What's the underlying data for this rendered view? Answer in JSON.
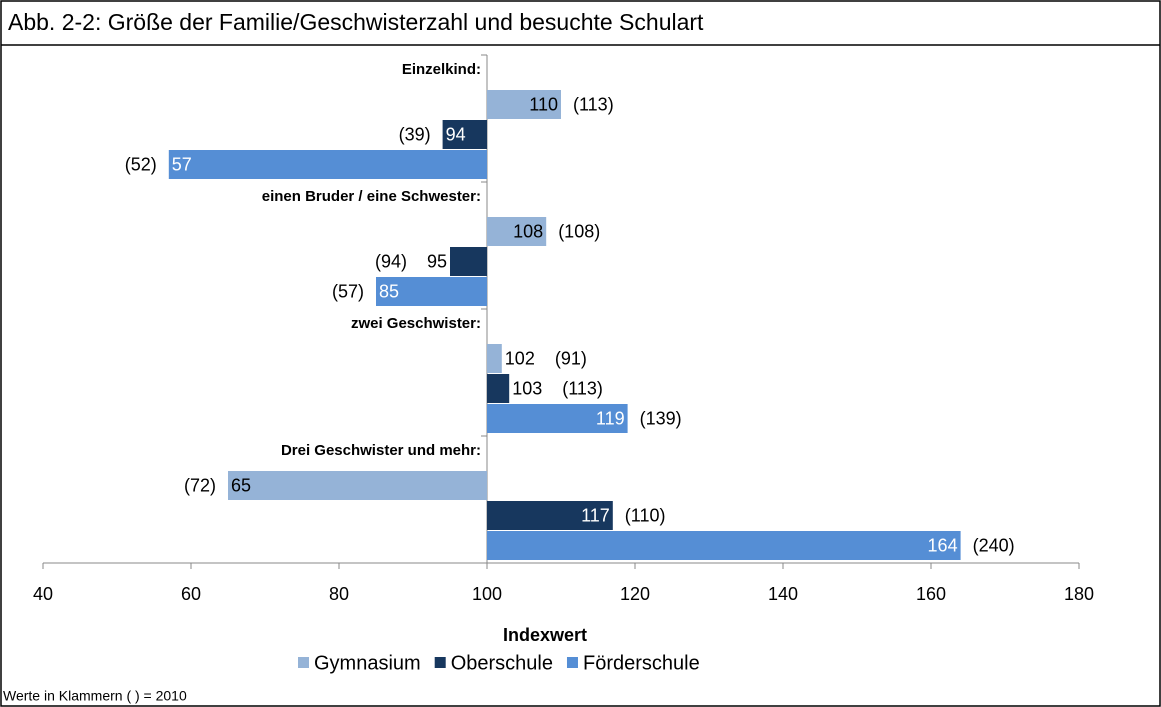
{
  "chart_data": {
    "type": "bar",
    "orientation": "horizontal",
    "title": "Abb. 2-2: Größe der Familie/Geschwisterzahl und besuchte Schulart",
    "categories": [
      "Einzelkind:",
      "einen Bruder / eine Schwester:",
      "zwei Geschwister:",
      "Drei Geschwister und mehr:"
    ],
    "series": [
      {
        "name": "Gymnasium",
        "color": "#95b3d7",
        "label_color": "#000000",
        "values": [
          110,
          108,
          102,
          65
        ],
        "prior_labels": [
          "(113)",
          "(108)",
          "(91)",
          "(72)"
        ]
      },
      {
        "name": "Oberschule",
        "color": "#17375e",
        "label_color": "#ffffff",
        "values": [
          94,
          95,
          103,
          117
        ],
        "prior_labels": [
          "(39)",
          "(94)",
          "(113)",
          "(110)"
        ]
      },
      {
        "name": "Förderschule",
        "color": "#558ed5",
        "label_color": "#ffffff",
        "values": [
          57,
          85,
          119,
          164
        ],
        "prior_labels": [
          "(52)",
          "(57)",
          "(139)",
          "(240)"
        ]
      }
    ],
    "base": 100,
    "xlim": [
      40,
      180
    ],
    "xticks": [
      40,
      60,
      80,
      100,
      120,
      140,
      160,
      180
    ],
    "xlabel": "Indexwert",
    "legend": "bottom",
    "note": "Werte in Klammern ( ) = 2010"
  }
}
